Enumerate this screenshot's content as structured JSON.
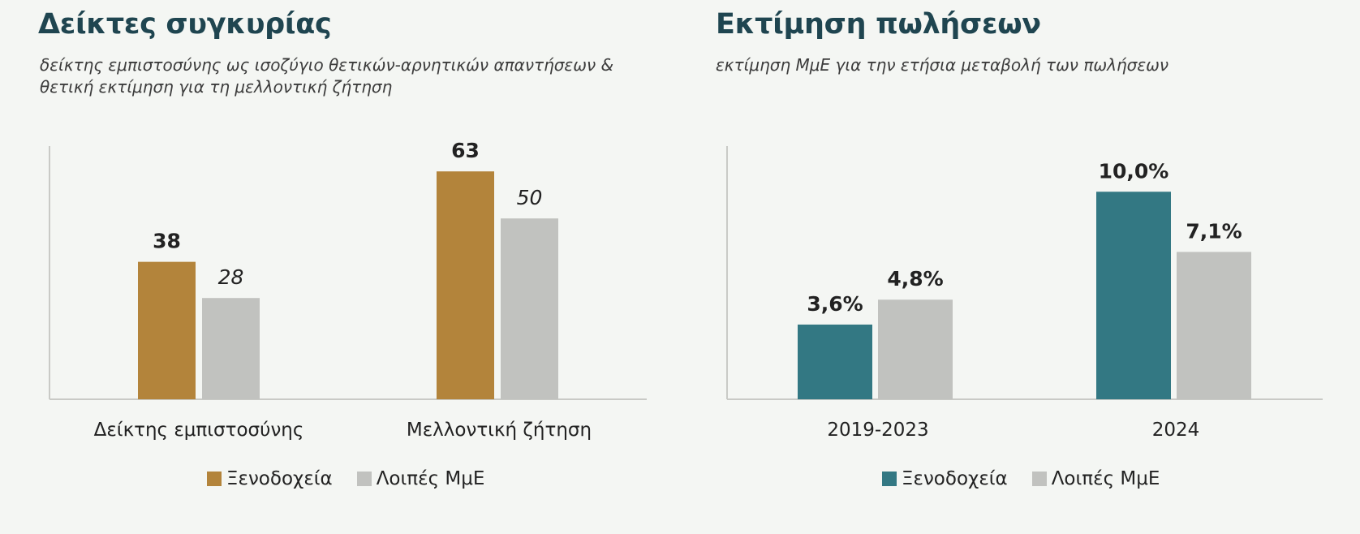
{
  "chart_data": [
    {
      "type": "bar",
      "title": "Δείκτες συγκυρίας",
      "subtitle_lines": [
        "δείκτης εμπιστοσύνης ως ισοζύγιο θετικών-αρνητικών απαντήσεων &",
        "θετική εκτίμηση για τη μελλοντική ζήτηση"
      ],
      "categories": [
        "Δείκτης εμπιστοσύνης",
        "Μελλοντική ζήτηση"
      ],
      "series": [
        {
          "name": "Ξενοδοχεία",
          "values": [
            38,
            63
          ],
          "labels": [
            "38",
            "63"
          ],
          "color": "#b3843b",
          "label_style": "bold"
        },
        {
          "name": "Λοιπές ΜμΕ",
          "values": [
            28,
            50
          ],
          "labels": [
            "28",
            "50"
          ],
          "color": "#c1c2bf",
          "label_style": "italic"
        }
      ],
      "ylim": [
        0,
        70
      ],
      "xlabel": "",
      "ylabel": "",
      "grid": false,
      "legend": "bottom"
    },
    {
      "type": "bar",
      "title": "Εκτίμηση πωλήσεων",
      "subtitle_lines": [
        "εκτίμηση ΜμΕ για την ετήσια μεταβολή των πωλήσεων"
      ],
      "categories": [
        "2019-2023",
        "2024"
      ],
      "series": [
        {
          "name": "Ξενοδοχεία",
          "values": [
            3.6,
            10.0
          ],
          "labels": [
            "3,6%",
            "10,0%"
          ],
          "color": "#337883",
          "label_style": "bold"
        },
        {
          "name": "Λοιπές ΜμΕ",
          "values": [
            4.8,
            7.1
          ],
          "labels": [
            "4,8%",
            "7,1%"
          ],
          "color": "#c1c2bf",
          "label_style": "bold"
        }
      ],
      "ylim": [
        0,
        12.2
      ],
      "xlabel": "",
      "ylabel": "",
      "grid": false,
      "legend": "bottom"
    }
  ]
}
